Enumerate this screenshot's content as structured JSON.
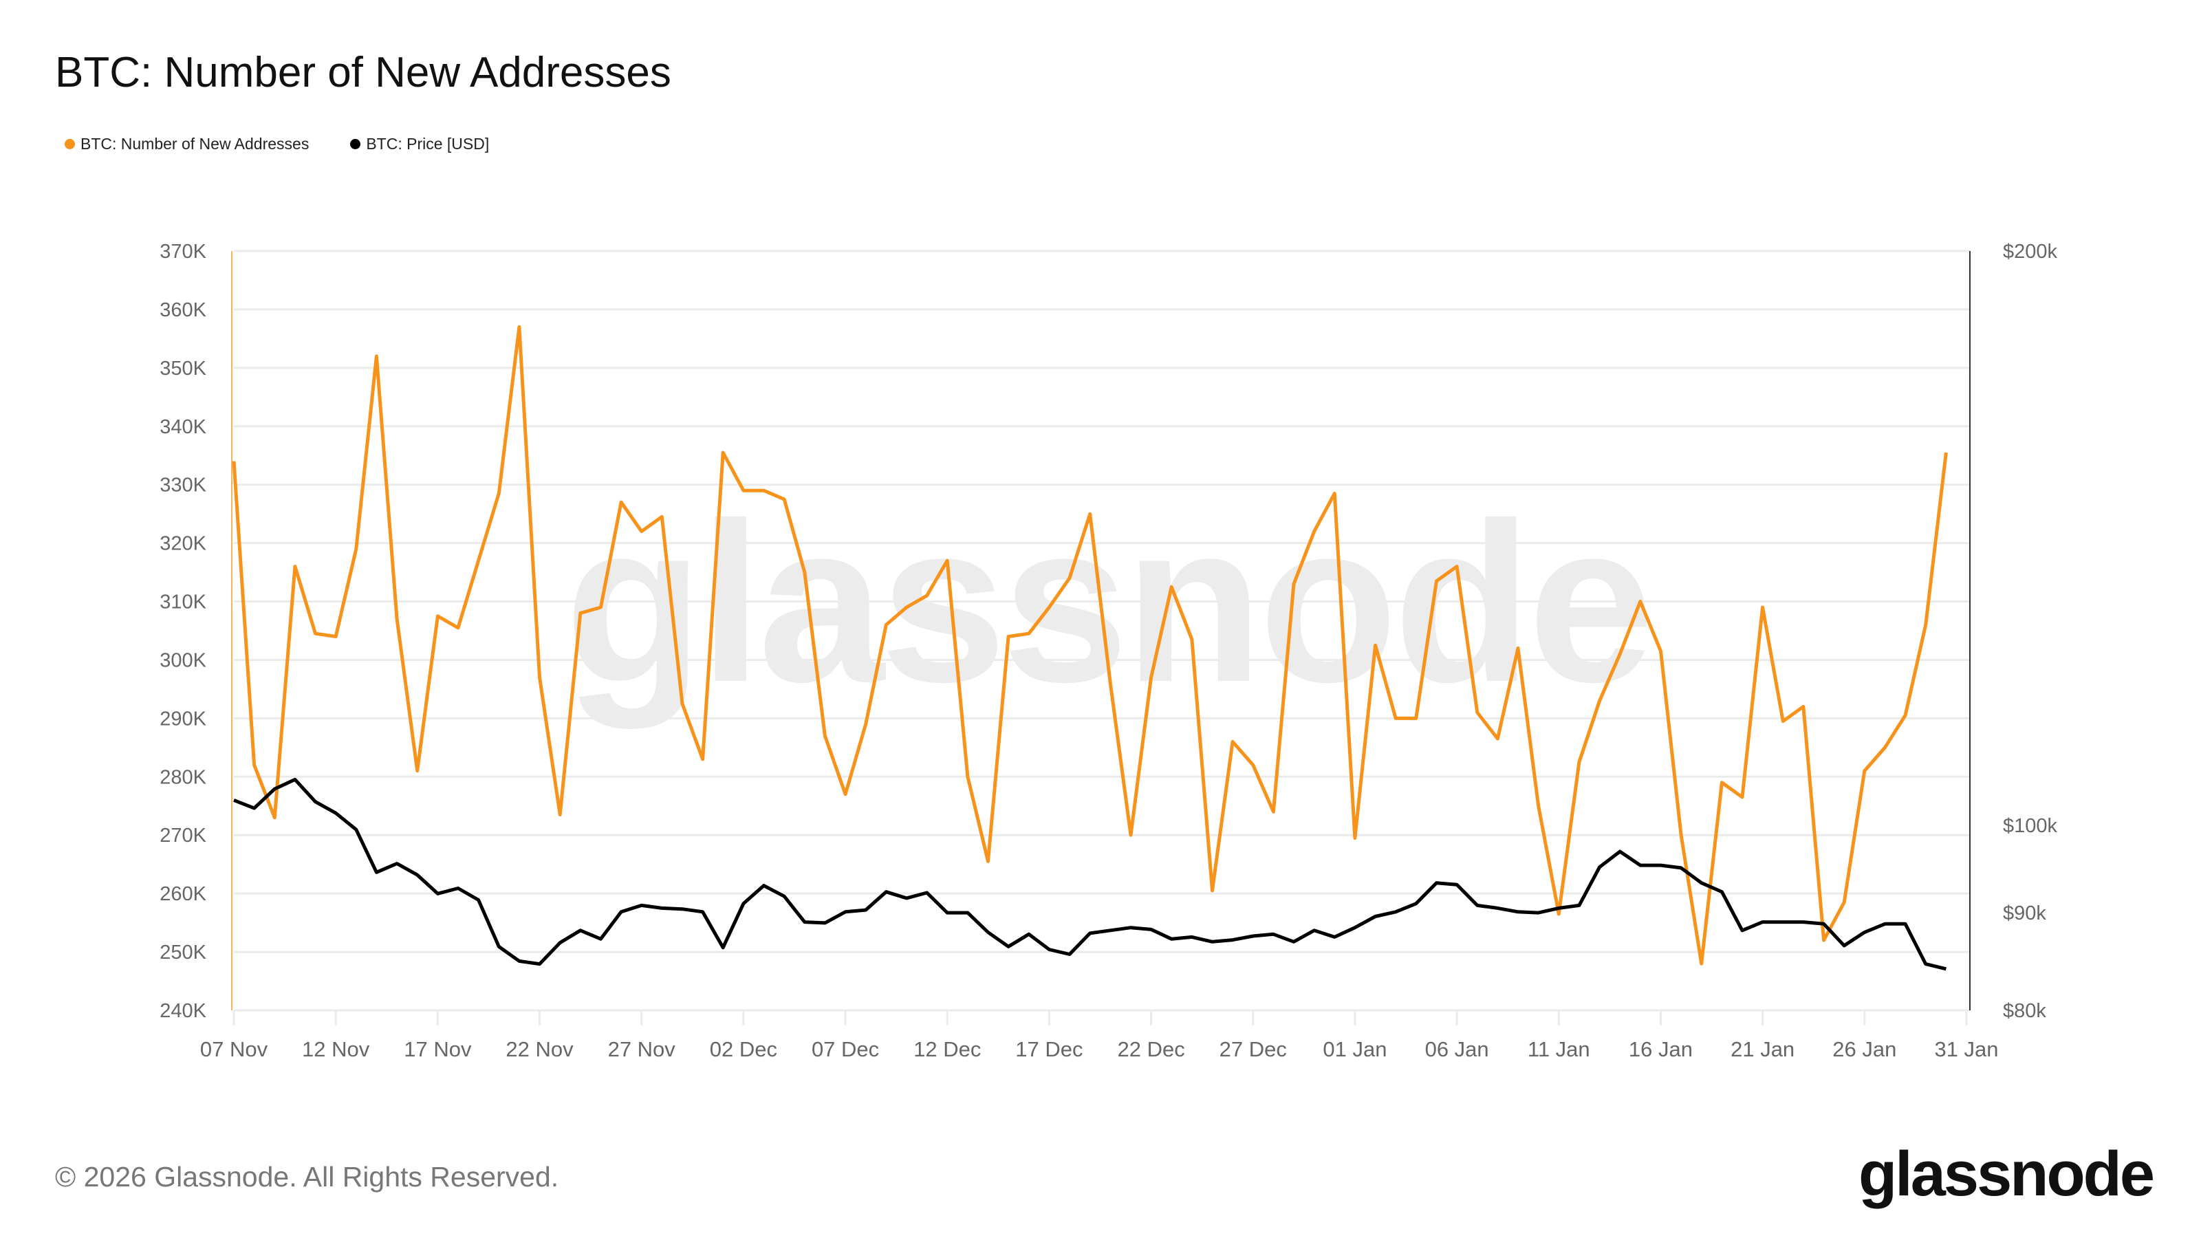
{
  "chart_data": {
    "type": "line",
    "title": "BTC: Number of New Addresses",
    "legend_placement": "top-left",
    "grid": true,
    "x_start": "2025-11-07",
    "x_tick_labels": [
      "07 Nov",
      "12 Nov",
      "17 Nov",
      "22 Nov",
      "27 Nov",
      "02 Dec",
      "07 Dec",
      "12 Dec",
      "17 Dec",
      "22 Dec",
      "27 Dec",
      "01 Jan",
      "06 Jan",
      "11 Jan",
      "16 Jan",
      "21 Jan",
      "26 Jan",
      "31 Jan"
    ],
    "y_left": {
      "ylim": [
        240000,
        370000
      ],
      "tick_labels": [
        "240K",
        "250K",
        "260K",
        "270K",
        "280K",
        "290K",
        "300K",
        "310K",
        "320K",
        "330K",
        "340K",
        "350K",
        "360K",
        "370K"
      ]
    },
    "y_right": {
      "scale": "log",
      "ylim": [
        80000,
        200000
      ],
      "tick_labels": [
        "$80k",
        "$90k",
        "$100k",
        "$200k"
      ],
      "ticks": [
        80000,
        90000,
        100000,
        200000
      ]
    },
    "series": [
      {
        "name": "BTC: Number of New Addresses",
        "color": "#f7931a",
        "axis": "left",
        "values": [
          334000,
          282000,
          273000,
          316000,
          304500,
          304000,
          319000,
          352000,
          307000,
          281000,
          307500,
          305500,
          317000,
          328500,
          357000,
          297000,
          273500,
          308000,
          309000,
          327000,
          322000,
          324500,
          292500,
          283000,
          335500,
          329000,
          329000,
          327500,
          315000,
          287000,
          277000,
          289000,
          306000,
          309000,
          311000,
          317000,
          280000,
          265500,
          304000,
          304500,
          309000,
          314000,
          325000,
          296000,
          270000,
          297000,
          312500,
          303500,
          260500,
          286000,
          282000,
          274000,
          313000,
          322000,
          328500,
          269500,
          302500,
          290000,
          290000,
          313500,
          316000,
          291000,
          286500,
          302000,
          275000,
          256500,
          282500,
          293000,
          301000,
          310000,
          301500,
          270000,
          248000,
          279000,
          276500,
          309000,
          289500,
          292000,
          252000,
          258500,
          281000,
          285000,
          290500,
          306000,
          335500
        ]
      },
      {
        "name": "BTC: Price [USD]",
        "color": "#000000",
        "axis": "right",
        "values": [
          103100,
          102100,
          104500,
          105700,
          102900,
          101500,
          99500,
          94500,
          95500,
          94200,
          92100,
          92700,
          91400,
          86400,
          84900,
          84600,
          86800,
          88100,
          87200,
          90100,
          90800,
          90500,
          90400,
          90100,
          86300,
          91000,
          93000,
          91800,
          89000,
          88900,
          90100,
          90300,
          92300,
          91600,
          92200,
          90000,
          90000,
          87900,
          86400,
          87700,
          86100,
          85600,
          87800,
          88100,
          88400,
          88200,
          87200,
          87400,
          86900,
          87100,
          87500,
          87700,
          86900,
          88100,
          87400,
          88400,
          89600,
          90100,
          91000,
          93300,
          93100,
          90800,
          90500,
          90100,
          90000,
          90500,
          90800,
          95100,
          96900,
          95300,
          95300,
          95000,
          93300,
          92300,
          88100,
          89000,
          89000,
          89000,
          88800,
          86500,
          87900,
          88800,
          88800,
          84600,
          84100
        ]
      }
    ]
  },
  "watermark": "glassnode",
  "footer": {
    "copyright": "© 2026 Glassnode. All Rights Reserved.",
    "logo": "glassnode"
  }
}
